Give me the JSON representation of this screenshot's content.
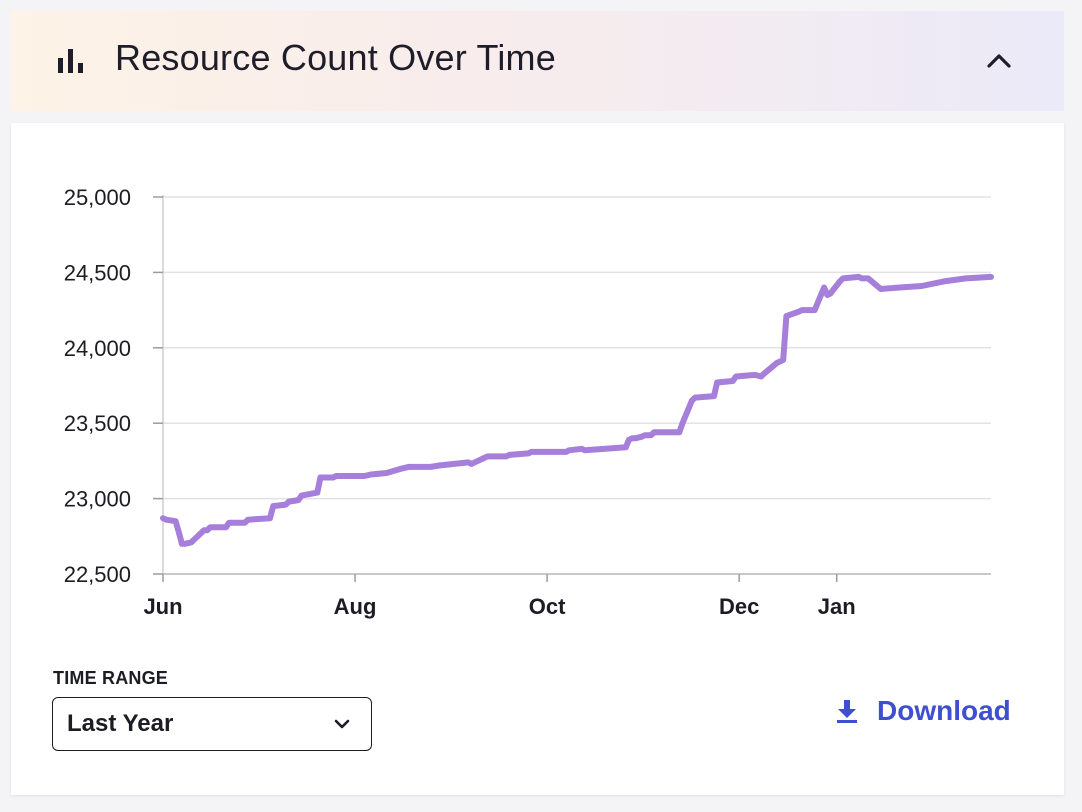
{
  "header": {
    "title": "Resource Count Over Time",
    "icon": "bar-chart-icon",
    "collapse_icon": "chevron-up-icon"
  },
  "chart_data": {
    "type": "line",
    "title": "",
    "xlabel": "",
    "ylabel": "",
    "ylim": [
      22500,
      25000
    ],
    "y_ticks": [
      "25,000",
      "24,500",
      "24,000",
      "23,500",
      "23,000",
      "22,500"
    ],
    "y_tick_values": [
      25000,
      24500,
      24000,
      23500,
      23000,
      22500
    ],
    "x_ticks": [
      "Jun",
      "Aug",
      "Oct",
      "Dec",
      "Jan"
    ],
    "x_tick_dates": [
      "2023-06-01",
      "2023-08-01",
      "2023-10-01",
      "2023-12-01",
      "2024-01-01"
    ],
    "xlim": [
      "2023-06-01",
      "2024-02-19"
    ],
    "grid": true,
    "line_color": "#a67fdb",
    "series": [
      {
        "x": [
          "2023-06-01",
          "2023-06-02",
          "2023-06-05",
          "2023-06-06",
          "2023-06-07",
          "2023-06-08",
          "2023-06-10",
          "2023-06-14",
          "2023-06-15",
          "2023-06-16",
          "2023-06-21",
          "2023-06-22",
          "2023-06-27",
          "2023-06-28",
          "2023-07-05",
          "2023-07-06",
          "2023-07-10",
          "2023-07-11",
          "2023-07-14",
          "2023-07-15",
          "2023-07-20",
          "2023-07-21",
          "2023-07-25",
          "2023-07-26",
          "2023-08-04",
          "2023-08-06",
          "2023-08-11",
          "2023-08-16",
          "2023-08-18",
          "2023-08-25",
          "2023-08-28",
          "2023-09-06",
          "2023-09-07",
          "2023-09-12",
          "2023-09-13",
          "2023-09-18",
          "2023-09-19",
          "2023-09-25",
          "2023-09-26",
          "2023-10-07",
          "2023-10-08",
          "2023-10-12",
          "2023-10-13",
          "2023-10-26",
          "2023-10-27",
          "2023-10-28",
          "2023-10-29",
          "2023-10-31",
          "2023-11-01",
          "2023-11-03",
          "2023-11-04",
          "2023-11-12",
          "2023-11-13",
          "2023-11-16",
          "2023-11-17",
          "2023-11-23",
          "2023-11-24",
          "2023-11-29",
          "2023-11-30",
          "2023-12-06",
          "2023-12-08",
          "2023-12-09",
          "2023-12-13",
          "2023-12-15",
          "2023-12-16",
          "2023-12-20",
          "2023-12-21",
          "2023-12-25",
          "2023-12-26",
          "2023-12-28",
          "2023-12-29",
          "2023-12-30",
          "2024-01-02",
          "2024-01-03",
          "2024-01-08",
          "2024-01-09",
          "2024-01-11",
          "2024-01-15",
          "2024-01-21",
          "2024-01-28",
          "2024-02-04",
          "2024-02-11",
          "2024-02-19"
        ],
        "y": [
          22870,
          22860,
          22850,
          22780,
          22700,
          22700,
          22710,
          22790,
          22790,
          22810,
          22810,
          22840,
          22840,
          22860,
          22870,
          22950,
          22960,
          22980,
          22990,
          23020,
          23040,
          23140,
          23140,
          23150,
          23150,
          23160,
          23170,
          23200,
          23210,
          23210,
          23220,
          23240,
          23230,
          23280,
          23280,
          23280,
          23290,
          23300,
          23310,
          23310,
          23320,
          23330,
          23320,
          23340,
          23390,
          23400,
          23400,
          23410,
          23420,
          23420,
          23440,
          23440,
          23500,
          23650,
          23670,
          23680,
          23770,
          23780,
          23810,
          23820,
          23810,
          23830,
          23900,
          23920,
          24210,
          24240,
          24250,
          24250,
          24300,
          24400,
          24350,
          24360,
          24440,
          24460,
          24470,
          24460,
          24460,
          24390,
          24400,
          24410,
          24440,
          24460,
          24470
        ]
      }
    ]
  },
  "controls": {
    "time_range_label": "TIME RANGE",
    "time_range_value": "Last Year",
    "time_range_chevron": "chevron-down-icon",
    "download_label": "Download",
    "download_icon": "download-icon"
  },
  "colors": {
    "accent": "#3f4fd1",
    "line": "#a67fdb"
  }
}
